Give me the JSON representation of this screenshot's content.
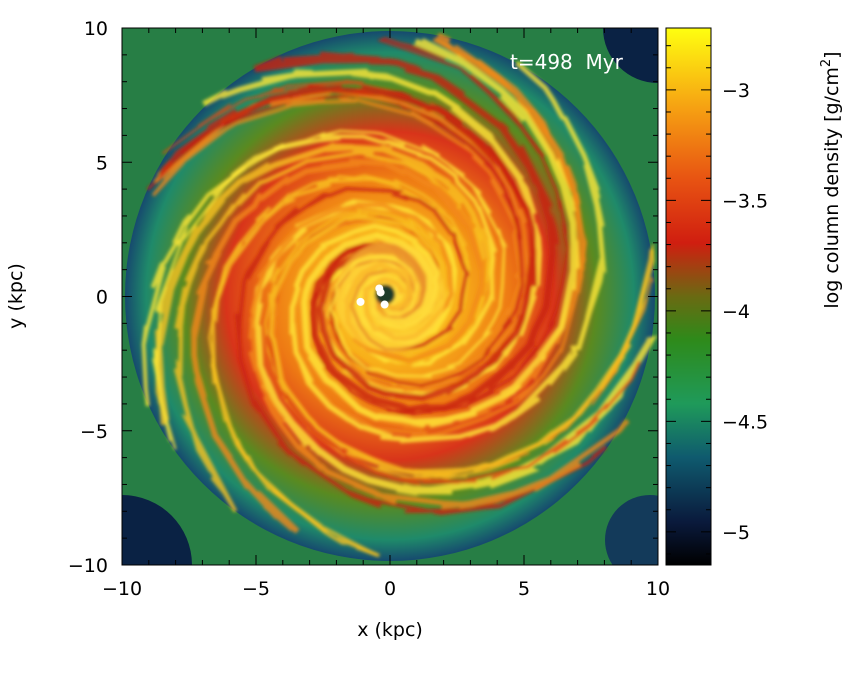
{
  "chart_data": {
    "type": "heatmap",
    "title": "",
    "annotation": "t=498  Myr",
    "xlabel": "x (kpc)",
    "ylabel": "y (kpc)",
    "xlim": [
      -10,
      10
    ],
    "ylim": [
      -10,
      10
    ],
    "xticks": [
      -10,
      -5,
      0,
      5,
      10
    ],
    "yticks": [
      -10,
      -5,
      0,
      5,
      10
    ],
    "xtick_labels": [
      "−10",
      "−5",
      "0",
      "5",
      "10"
    ],
    "ytick_labels": [
      "−10",
      "−5",
      "0",
      "5",
      "10"
    ],
    "colorbar": {
      "label": "log column density [g/cm",
      "label_sup": "2",
      "label_end": "]",
      "range": [
        -5.15,
        -2.72
      ],
      "ticks": [
        -5,
        -4.5,
        -4,
        -3.5,
        -3
      ],
      "tick_labels": [
        "−5",
        "−4.5",
        "−4",
        "−3.5",
        "−3"
      ],
      "colormap": [
        {
          "v": 0.0,
          "color": "#000000"
        },
        {
          "v": 0.08,
          "color": "#0a1a3c"
        },
        {
          "v": 0.2,
          "color": "#0f5a6e"
        },
        {
          "v": 0.3,
          "color": "#1f9a5a"
        },
        {
          "v": 0.42,
          "color": "#2e8a1a"
        },
        {
          "v": 0.5,
          "color": "#6a6a12"
        },
        {
          "v": 0.6,
          "color": "#d01e10"
        },
        {
          "v": 0.72,
          "color": "#e85412"
        },
        {
          "v": 0.85,
          "color": "#f6a012"
        },
        {
          "v": 1.0,
          "color": "#ffff10"
        }
      ]
    },
    "description_structure": "face-on two-armed spiral galaxy gas disk",
    "markers": [
      {
        "x": -0.4,
        "y": 0.3
      },
      {
        "x": -1.1,
        "y": -0.2
      },
      {
        "x": -0.2,
        "y": -0.3
      },
      {
        "x": -0.35,
        "y": 0.15
      }
    ]
  }
}
